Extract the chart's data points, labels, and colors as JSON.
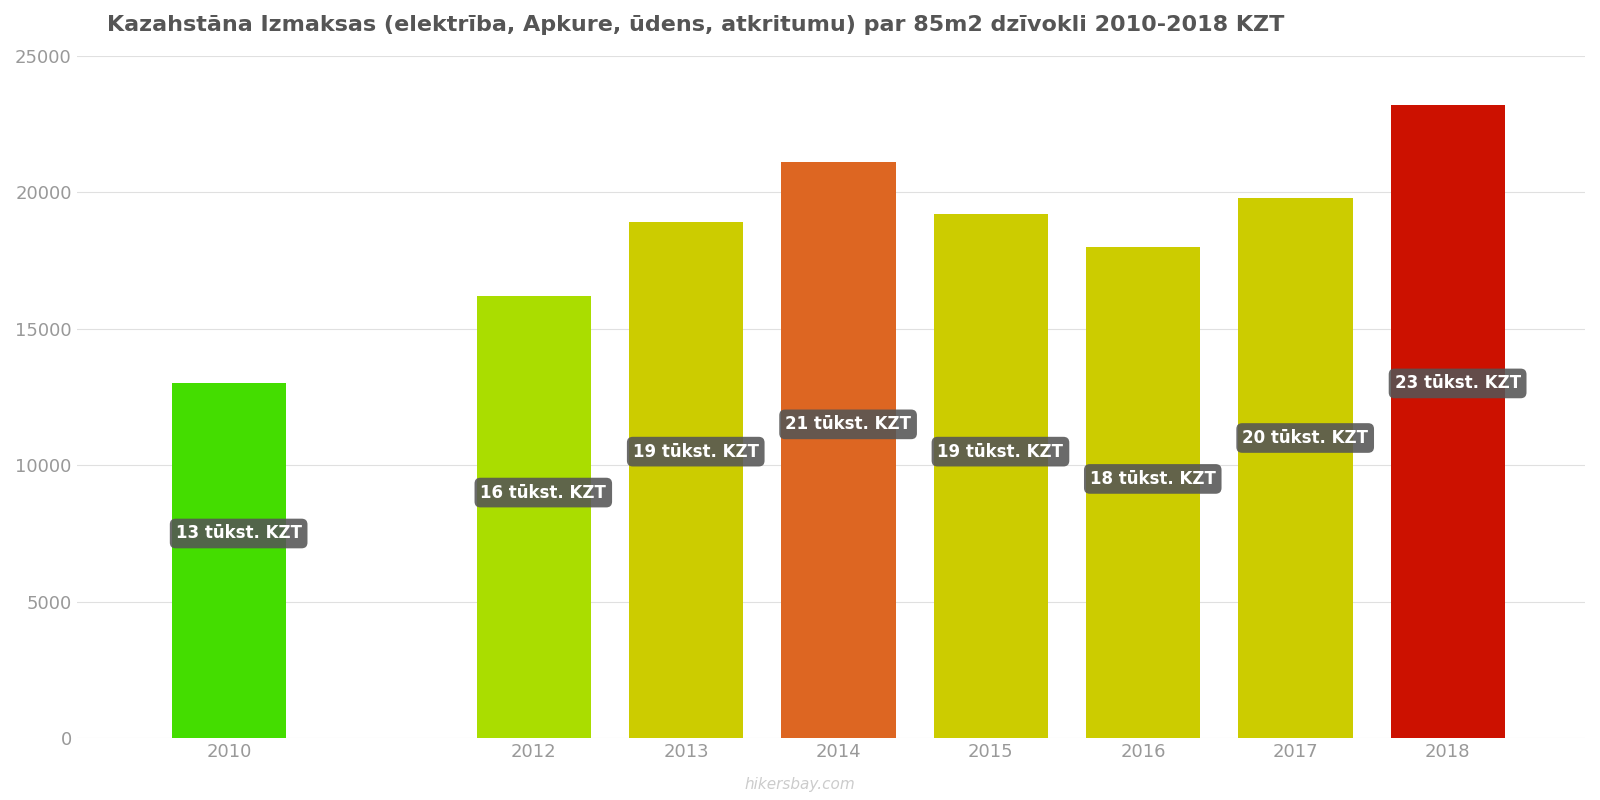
{
  "title": "Kazahstāna Izmaksas (elektrība, Apkure, ūdens, atkritumu) par 85m2 dzīvokli 2010-2018 KZT",
  "years": [
    2010,
    2012,
    2013,
    2014,
    2015,
    2016,
    2017,
    2018
  ],
  "values": [
    13000,
    16200,
    18900,
    21100,
    19200,
    18000,
    19800,
    23200
  ],
  "labels": [
    "13 tūkst. KZT",
    "16 tūkst. KZT",
    "19 tūkst. KZT",
    "21 tūkst. KZT",
    "19 tūkst. KZT",
    "18 tūkst. KZT",
    "20 tūkst. KZT",
    "23 tūkst. KZT"
  ],
  "colors": [
    "#44dd00",
    "#aadd00",
    "#cccc00",
    "#dd6622",
    "#cccc00",
    "#cccc00",
    "#cccc00",
    "#cc1100"
  ],
  "ylim": [
    0,
    25000
  ],
  "yticks": [
    0,
    5000,
    10000,
    15000,
    20000,
    25000
  ],
  "background_color": "#ffffff",
  "watermark": "hikersbay.com",
  "bar_width": 0.75,
  "label_y_offsets": [
    7500,
    9000,
    10500,
    11500,
    10500,
    9500,
    11000,
    13000
  ]
}
